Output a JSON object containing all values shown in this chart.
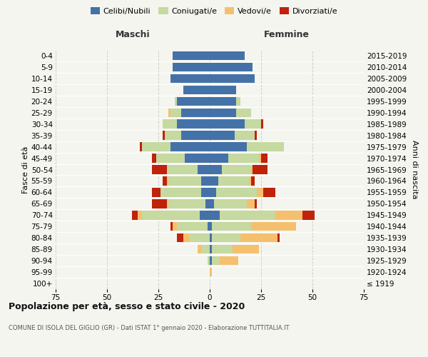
{
  "age_groups": [
    "100+",
    "95-99",
    "90-94",
    "85-89",
    "80-84",
    "75-79",
    "70-74",
    "65-69",
    "60-64",
    "55-59",
    "50-54",
    "45-49",
    "40-44",
    "35-39",
    "30-34",
    "25-29",
    "20-24",
    "15-19",
    "10-14",
    "5-9",
    "0-4"
  ],
  "birth_years": [
    "≤ 1919",
    "1920-1924",
    "1925-1929",
    "1930-1934",
    "1935-1939",
    "1940-1944",
    "1945-1949",
    "1950-1954",
    "1955-1959",
    "1960-1964",
    "1965-1969",
    "1970-1974",
    "1975-1979",
    "1980-1984",
    "1985-1989",
    "1990-1994",
    "1995-1999",
    "2000-2004",
    "2005-2009",
    "2010-2014",
    "2015-2019"
  ],
  "maschi": {
    "celibi": [
      0,
      0,
      0,
      0,
      0,
      1,
      5,
      2,
      4,
      4,
      6,
      12,
      19,
      14,
      16,
      14,
      16,
      13,
      19,
      18,
      18
    ],
    "coniugati": [
      0,
      0,
      1,
      4,
      10,
      15,
      28,
      18,
      20,
      16,
      15,
      14,
      14,
      8,
      7,
      5,
      1,
      0,
      0,
      0,
      0
    ],
    "vedovi": [
      0,
      0,
      0,
      2,
      3,
      2,
      2,
      1,
      0,
      1,
      0,
      0,
      0,
      0,
      0,
      1,
      0,
      0,
      0,
      0,
      0
    ],
    "divorziati": [
      0,
      0,
      0,
      0,
      3,
      1,
      3,
      7,
      4,
      2,
      7,
      2,
      1,
      1,
      0,
      0,
      0,
      0,
      0,
      0,
      0
    ]
  },
  "femmine": {
    "nubili": [
      0,
      0,
      1,
      1,
      1,
      1,
      5,
      2,
      3,
      4,
      6,
      9,
      18,
      12,
      17,
      13,
      13,
      13,
      22,
      21,
      17
    ],
    "coniugate": [
      0,
      0,
      4,
      10,
      14,
      19,
      27,
      16,
      20,
      15,
      14,
      15,
      18,
      10,
      8,
      7,
      2,
      0,
      0,
      0,
      0
    ],
    "vedove": [
      0,
      1,
      9,
      13,
      18,
      22,
      13,
      4,
      3,
      1,
      1,
      1,
      0,
      0,
      0,
      0,
      0,
      0,
      0,
      0,
      0
    ],
    "divorziate": [
      0,
      0,
      0,
      0,
      1,
      0,
      6,
      1,
      6,
      2,
      7,
      3,
      0,
      1,
      1,
      0,
      0,
      0,
      0,
      0,
      0
    ]
  },
  "colors": {
    "celibi": "#4472a8",
    "coniugati": "#c5d9a0",
    "vedovi": "#f5c06e",
    "divorziati": "#c0220a"
  },
  "xlim": 75,
  "title": "Popolazione per età, sesso e stato civile - 2020",
  "subtitle": "COMUNE DI ISOLA DEL GIGLIO (GR) - Dati ISTAT 1° gennaio 2020 - Elaborazione TUTTITALIA.IT",
  "ylabel_left": "Fasce di età",
  "ylabel_right": "Anni di nascita",
  "xlabel_left": "Maschi",
  "xlabel_right": "Femmine",
  "bg_color": "#f5f5f0",
  "grid_color": "#cccccc"
}
